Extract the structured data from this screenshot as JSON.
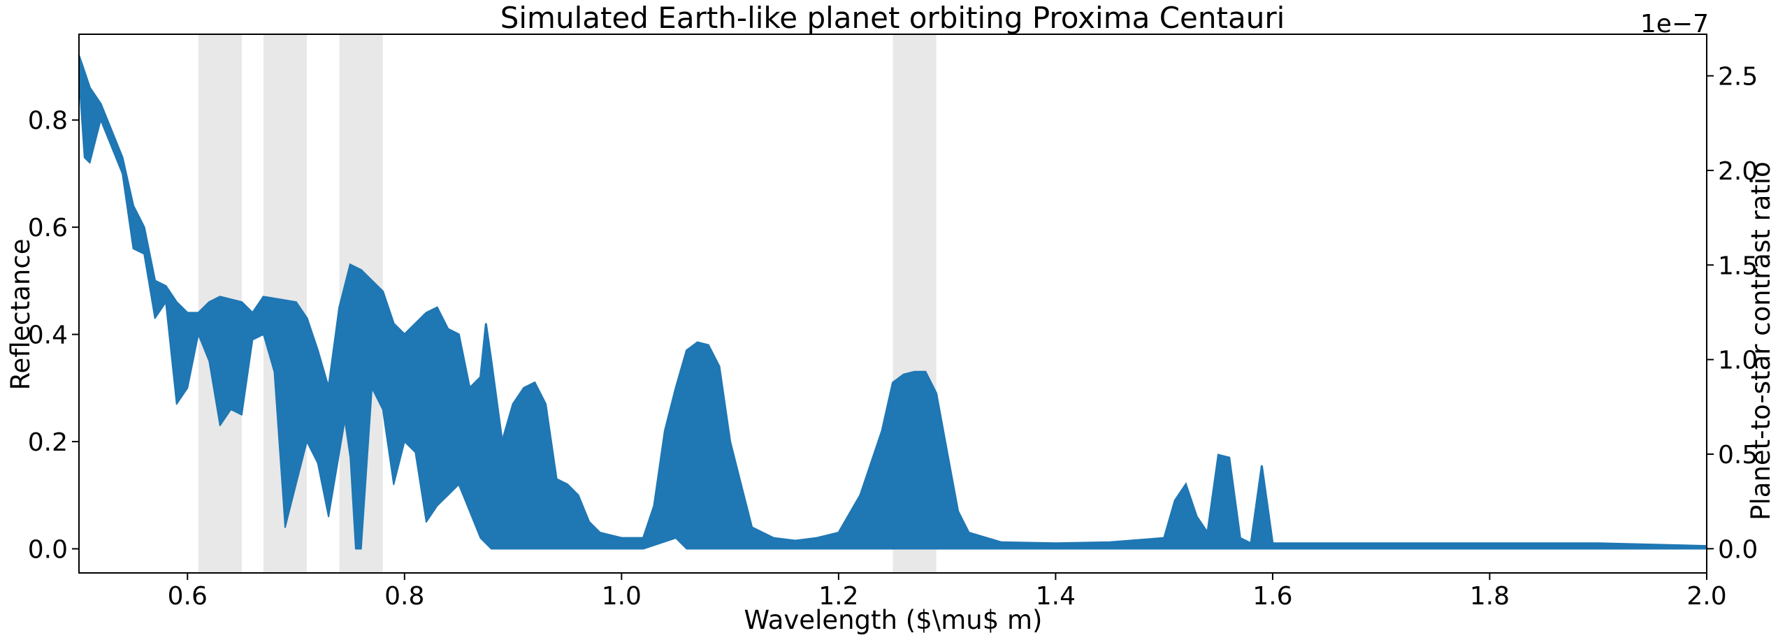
{
  "chart_data": {
    "type": "line",
    "title": "Simulated Earth-like planet orbiting Proxima Centauri",
    "xlabel": "Wavelength ($\\mu$ m)",
    "ylabel": "Reflectance",
    "y2label": "Planet-to-star contrast ratio",
    "y2_offset_text": "1e−7",
    "xlim": [
      0.5,
      2.0
    ],
    "ylim": [
      -0.045,
      0.96
    ],
    "y2lim": [
      -0.128,
      2.72
    ],
    "x_ticks": [
      "0.6",
      "0.8",
      "1.0",
      "1.2",
      "1.4",
      "1.6",
      "1.8",
      "2.0"
    ],
    "y_ticks": [
      "0.0",
      "0.2",
      "0.4",
      "0.6",
      "0.8"
    ],
    "y2_ticks": [
      "0.0",
      "0.5",
      "1.0",
      "1.5",
      "2.0",
      "2.5"
    ],
    "grid": false,
    "line_color": "#1f77b4",
    "band_color": "#e8e8e8",
    "highlight_bands": [
      [
        0.61,
        0.65
      ],
      [
        0.67,
        0.71
      ],
      [
        0.74,
        0.78
      ],
      [
        1.25,
        1.29
      ]
    ],
    "series": [
      {
        "upper": [
          [
            0.5,
            0.92
          ],
          [
            0.51,
            0.86
          ],
          [
            0.52,
            0.83
          ],
          [
            0.54,
            0.73
          ],
          [
            0.55,
            0.64
          ],
          [
            0.56,
            0.6
          ],
          [
            0.57,
            0.5
          ],
          [
            0.58,
            0.49
          ],
          [
            0.59,
            0.46
          ],
          [
            0.6,
            0.44
          ],
          [
            0.61,
            0.44
          ],
          [
            0.62,
            0.46
          ],
          [
            0.63,
            0.47
          ],
          [
            0.65,
            0.46
          ],
          [
            0.66,
            0.44
          ],
          [
            0.67,
            0.47
          ],
          [
            0.7,
            0.46
          ],
          [
            0.71,
            0.43
          ],
          [
            0.72,
            0.37
          ],
          [
            0.73,
            0.3
          ],
          [
            0.74,
            0.45
          ],
          [
            0.75,
            0.53
          ],
          [
            0.76,
            0.52
          ],
          [
            0.77,
            0.5
          ],
          [
            0.78,
            0.48
          ],
          [
            0.79,
            0.42
          ],
          [
            0.8,
            0.4
          ],
          [
            0.82,
            0.44
          ],
          [
            0.83,
            0.45
          ],
          [
            0.84,
            0.41
          ],
          [
            0.85,
            0.4
          ],
          [
            0.86,
            0.3
          ],
          [
            0.87,
            0.32
          ],
          [
            0.875,
            0.42
          ],
          [
            0.88,
            0.35
          ],
          [
            0.89,
            0.2
          ],
          [
            0.9,
            0.27
          ],
          [
            0.91,
            0.3
          ],
          [
            0.92,
            0.31
          ],
          [
            0.93,
            0.27
          ],
          [
            0.94,
            0.13
          ],
          [
            0.95,
            0.12
          ],
          [
            0.96,
            0.1
          ],
          [
            0.97,
            0.05
          ],
          [
            0.98,
            0.03
          ],
          [
            1.0,
            0.02
          ],
          [
            1.02,
            0.02
          ],
          [
            1.03,
            0.08
          ],
          [
            1.04,
            0.22
          ],
          [
            1.05,
            0.3
          ],
          [
            1.06,
            0.37
          ],
          [
            1.07,
            0.385
          ],
          [
            1.08,
            0.38
          ],
          [
            1.09,
            0.34
          ],
          [
            1.1,
            0.2
          ],
          [
            1.11,
            0.12
          ],
          [
            1.12,
            0.04
          ],
          [
            1.14,
            0.02
          ],
          [
            1.16,
            0.015
          ],
          [
            1.18,
            0.02
          ],
          [
            1.2,
            0.03
          ],
          [
            1.22,
            0.1
          ],
          [
            1.24,
            0.22
          ],
          [
            1.25,
            0.31
          ],
          [
            1.26,
            0.325
          ],
          [
            1.27,
            0.33
          ],
          [
            1.28,
            0.33
          ],
          [
            1.29,
            0.29
          ],
          [
            1.3,
            0.18
          ],
          [
            1.31,
            0.07
          ],
          [
            1.32,
            0.03
          ],
          [
            1.35,
            0.012
          ],
          [
            1.4,
            0.01
          ],
          [
            1.45,
            0.012
          ],
          [
            1.5,
            0.02
          ],
          [
            1.51,
            0.09
          ],
          [
            1.52,
            0.12
          ],
          [
            1.53,
            0.06
          ],
          [
            1.54,
            0.03
          ],
          [
            1.55,
            0.175
          ],
          [
            1.56,
            0.17
          ],
          [
            1.57,
            0.02
          ],
          [
            1.58,
            0.01
          ],
          [
            1.59,
            0.155
          ],
          [
            1.6,
            0.01
          ],
          [
            1.62,
            0.01
          ],
          [
            1.7,
            0.01
          ],
          [
            1.8,
            0.01
          ],
          [
            1.9,
            0.01
          ],
          [
            2.0,
            0.005
          ]
        ],
        "lower": [
          [
            0.5,
            0.88
          ],
          [
            0.505,
            0.73
          ],
          [
            0.51,
            0.72
          ],
          [
            0.52,
            0.8
          ],
          [
            0.54,
            0.7
          ],
          [
            0.55,
            0.56
          ],
          [
            0.56,
            0.55
          ],
          [
            0.57,
            0.43
          ],
          [
            0.58,
            0.46
          ],
          [
            0.59,
            0.27
          ],
          [
            0.6,
            0.3
          ],
          [
            0.61,
            0.4
          ],
          [
            0.62,
            0.35
          ],
          [
            0.63,
            0.23
          ],
          [
            0.64,
            0.26
          ],
          [
            0.65,
            0.25
          ],
          [
            0.66,
            0.39
          ],
          [
            0.67,
            0.4
          ],
          [
            0.68,
            0.33
          ],
          [
            0.69,
            0.04
          ],
          [
            0.7,
            0.12
          ],
          [
            0.71,
            0.2
          ],
          [
            0.72,
            0.16
          ],
          [
            0.73,
            0.06
          ],
          [
            0.74,
            0.18
          ],
          [
            0.745,
            0.24
          ],
          [
            0.75,
            0.17
          ],
          [
            0.755,
            0.0
          ],
          [
            0.76,
            0.0
          ],
          [
            0.77,
            0.3
          ],
          [
            0.78,
            0.26
          ],
          [
            0.79,
            0.12
          ],
          [
            0.8,
            0.2
          ],
          [
            0.81,
            0.18
          ],
          [
            0.82,
            0.05
          ],
          [
            0.83,
            0.08
          ],
          [
            0.84,
            0.1
          ],
          [
            0.85,
            0.12
          ],
          [
            0.86,
            0.07
          ],
          [
            0.87,
            0.02
          ],
          [
            0.88,
            0.0
          ],
          [
            0.9,
            0.0
          ],
          [
            1.0,
            0.0
          ],
          [
            1.02,
            0.0
          ],
          [
            1.05,
            0.02
          ],
          [
            1.06,
            0.0
          ],
          [
            1.08,
            0.0
          ],
          [
            1.1,
            0.0
          ],
          [
            1.15,
            0.0
          ],
          [
            1.2,
            0.0
          ],
          [
            1.25,
            0.0
          ],
          [
            1.3,
            0.0
          ],
          [
            1.35,
            0.0
          ],
          [
            1.5,
            0.0
          ],
          [
            1.55,
            0.0
          ],
          [
            1.6,
            0.0
          ],
          [
            1.8,
            0.0
          ],
          [
            2.0,
            0.0
          ]
        ]
      }
    ]
  }
}
